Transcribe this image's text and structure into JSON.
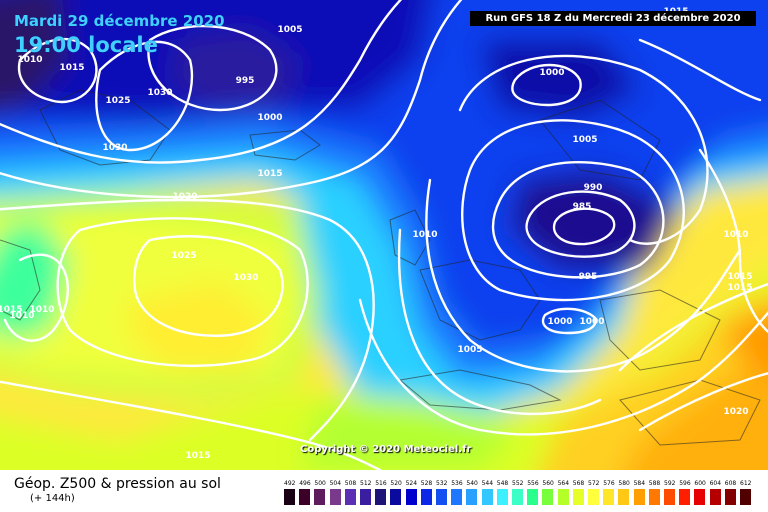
{
  "header": {
    "date_label": "Mardi 29 décembre 2020",
    "time_label": "19:00 locale",
    "run_label": "Run GFS 18 Z du Mercredi 23 décembre 2020"
  },
  "map": {
    "copyright": "Copyright © 2020 Meteociel.fr",
    "isobar_labels": [
      {
        "text": "1005"
      },
      {
        "text": "1010"
      },
      {
        "text": "1015"
      },
      {
        "text": "1025"
      },
      {
        "text": "1030"
      },
      {
        "text": "995"
      },
      {
        "text": "1000"
      },
      {
        "text": "1030"
      },
      {
        "text": "1015"
      },
      {
        "text": "1020"
      },
      {
        "text": "1025"
      },
      {
        "text": "1030"
      },
      {
        "text": "1000"
      },
      {
        "text": "1005"
      },
      {
        "text": "990"
      },
      {
        "text": "985"
      },
      {
        "text": "995"
      },
      {
        "text": "1010"
      },
      {
        "text": "1010"
      },
      {
        "text": "1015"
      },
      {
        "text": "1015"
      },
      {
        "text": "1000"
      },
      {
        "text": "1000"
      },
      {
        "text": "1005"
      },
      {
        "text": "1015"
      },
      {
        "text": "1010"
      },
      {
        "text": "1010"
      },
      {
        "text": "1015"
      },
      {
        "text": "1020"
      },
      {
        "text": "1015"
      }
    ]
  },
  "footer": {
    "title": "Géop. Z500 & pression au sol",
    "subtitle": "(+ 144h)"
  },
  "legend": {
    "values": [
      "492",
      "496",
      "500",
      "504",
      "508",
      "512",
      "516",
      "520",
      "524",
      "528",
      "532",
      "536",
      "540",
      "544",
      "548",
      "552",
      "556",
      "560",
      "564",
      "568",
      "572",
      "576",
      "580",
      "584",
      "588",
      "592",
      "596",
      "600",
      "604",
      "608",
      "612"
    ],
    "colors": [
      "#1a0014",
      "#3c0028",
      "#5e1c5e",
      "#7a3a8c",
      "#5a2fb4",
      "#3a1ea0",
      "#1e1478",
      "#0a0a9e",
      "#0000cc",
      "#0a28e6",
      "#1450f0",
      "#1e78ff",
      "#28a0ff",
      "#32c8ff",
      "#3cf0ff",
      "#3cffc8",
      "#28ff8c",
      "#78ff3c",
      "#b4ff28",
      "#e6ff28",
      "#ffff3c",
      "#ffe628",
      "#ffc814",
      "#ffa000",
      "#ff7800",
      "#ff4b00",
      "#ff1e00",
      "#e60000",
      "#b40000",
      "#820000",
      "#500000"
    ]
  }
}
